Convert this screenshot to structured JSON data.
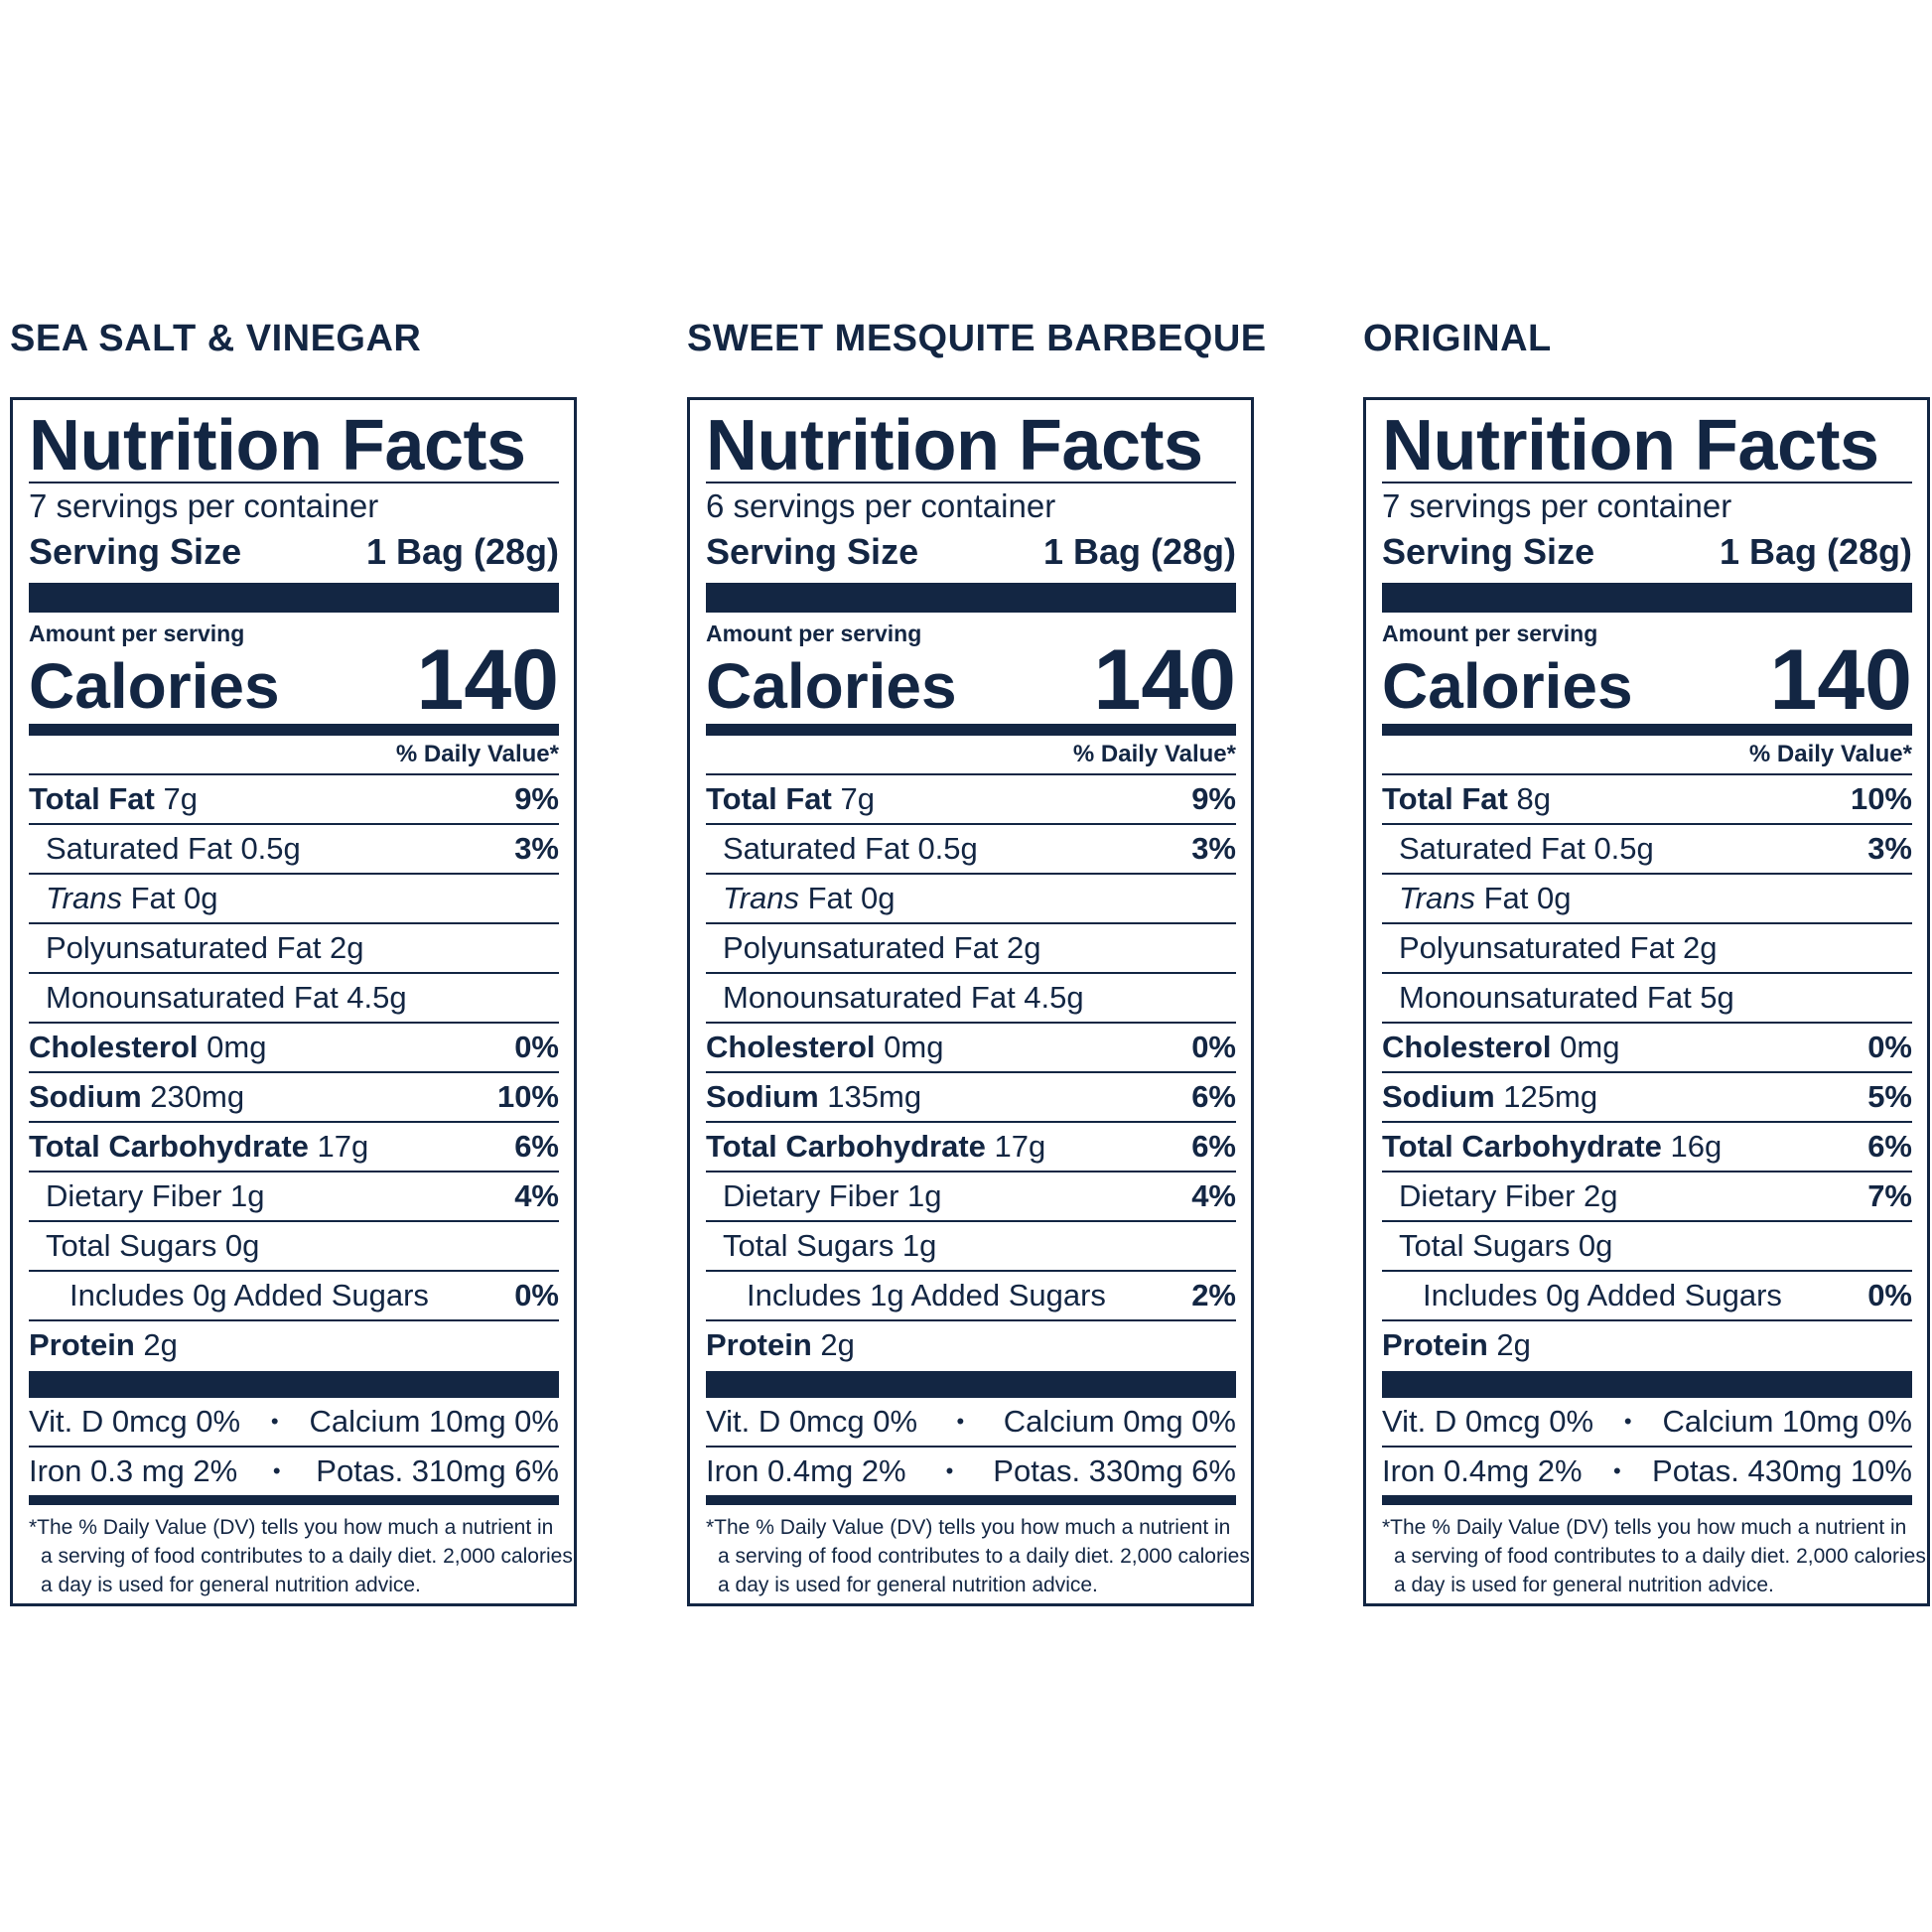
{
  "labels": [
    {
      "flavor": "SEA SALT & VINEGAR",
      "title": "Nutrition Facts",
      "servings": "7 servings per container",
      "serving_size_label": "Serving Size",
      "serving_size_value": "1 Bag (28g)",
      "amount_per_serving": "Amount per serving",
      "calories_label": "Calories",
      "calories_value": "140",
      "dv_header": "% Daily Value*",
      "total_fat": {
        "label": "Total Fat",
        "amount": "7g",
        "dv": "9%"
      },
      "saturated_fat": {
        "label": "Saturated Fat 0.5g",
        "dv": "3%"
      },
      "trans_fat": {
        "label_italic": "Trans",
        "label_rest": " Fat 0g"
      },
      "poly_fat": {
        "label": "Polyunsaturated Fat 2g"
      },
      "mono_fat": {
        "label": "Monounsaturated Fat 4.5g"
      },
      "cholesterol": {
        "label": "Cholesterol",
        "amount": "0mg",
        "dv": "0%"
      },
      "sodium": {
        "label": "Sodium",
        "amount": "230mg",
        "dv": "10%"
      },
      "total_carb": {
        "label": "Total Carbohydrate",
        "amount": "17g",
        "dv": "6%"
      },
      "fiber": {
        "label": "Dietary Fiber 1g",
        "dv": "4%"
      },
      "total_sugars": {
        "label": "Total Sugars 0g"
      },
      "added_sugars": {
        "label": "Includes 0g Added Sugars",
        "dv": "0%"
      },
      "protein": {
        "label": "Protein",
        "amount": "2g"
      },
      "vit_row": {
        "left": "Vit. D 0mcg 0%",
        "right": "Calcium 10mg 0%"
      },
      "iron_row": {
        "left": "Iron 0.3 mg  2%",
        "right": "Potas. 310mg 6%"
      },
      "footnote": {
        "line1": "*The % Daily Value (DV) tells you how much a nutrient in",
        "line2": "a serving of food contributes to a daily diet. 2,000 calories",
        "line3": "a day is used for general nutrition advice."
      }
    },
    {
      "flavor": "SWEET MESQUITE BARBEQUE",
      "title": "Nutrition Facts",
      "servings": "6 servings per container",
      "serving_size_label": "Serving Size",
      "serving_size_value": "1 Bag (28g)",
      "amount_per_serving": "Amount per serving",
      "calories_label": "Calories",
      "calories_value": "140",
      "dv_header": "% Daily Value*",
      "total_fat": {
        "label": "Total Fat",
        "amount": "7g",
        "dv": "9%"
      },
      "saturated_fat": {
        "label": "Saturated Fat 0.5g",
        "dv": "3%"
      },
      "trans_fat": {
        "label_italic": "Trans",
        "label_rest": " Fat 0g"
      },
      "poly_fat": {
        "label": "Polyunsaturated Fat 2g"
      },
      "mono_fat": {
        "label": "Monounsaturated Fat 4.5g"
      },
      "cholesterol": {
        "label": "Cholesterol",
        "amount": "0mg",
        "dv": "0%"
      },
      "sodium": {
        "label": "Sodium",
        "amount": "135mg",
        "dv": "6%"
      },
      "total_carb": {
        "label": "Total Carbohydrate",
        "amount": "17g",
        "dv": "6%"
      },
      "fiber": {
        "label": "Dietary Fiber 1g",
        "dv": "4%"
      },
      "total_sugars": {
        "label": "Total Sugars 1g"
      },
      "added_sugars": {
        "label": "Includes 1g Added Sugars",
        "dv": "2%"
      },
      "protein": {
        "label": "Protein",
        "amount": "2g"
      },
      "vit_row": {
        "left": "Vit. D 0mcg 0%",
        "right": "Calcium 0mg 0%"
      },
      "iron_row": {
        "left": "Iron 0.4mg  2%",
        "right": "Potas. 330mg 6%"
      },
      "footnote": {
        "line1": "*The % Daily Value (DV) tells you how much a nutrient in",
        "line2": "a serving of food contributes to a daily diet. 2,000 calories",
        "line3": "a day is used for general nutrition advice."
      }
    },
    {
      "flavor": "ORIGINAL",
      "title": "Nutrition Facts",
      "servings": "7 servings per container",
      "serving_size_label": "Serving Size",
      "serving_size_value": "1 Bag (28g)",
      "amount_per_serving": "Amount per serving",
      "calories_label": "Calories",
      "calories_value": "140",
      "dv_header": "% Daily Value*",
      "total_fat": {
        "label": "Total Fat",
        "amount": "8g",
        "dv": "10%"
      },
      "saturated_fat": {
        "label": "Saturated Fat 0.5g",
        "dv": "3%"
      },
      "trans_fat": {
        "label_italic": "Trans",
        "label_rest": " Fat 0g"
      },
      "poly_fat": {
        "label": "Polyunsaturated Fat 2g"
      },
      "mono_fat": {
        "label": "Monounsaturated Fat 5g"
      },
      "cholesterol": {
        "label": "Cholesterol",
        "amount": "0mg",
        "dv": "0%"
      },
      "sodium": {
        "label": "Sodium",
        "amount": "125mg",
        "dv": "5%"
      },
      "total_carb": {
        "label": "Total Carbohydrate",
        "amount": "16g",
        "dv": "6%"
      },
      "fiber": {
        "label": "Dietary Fiber 2g",
        "dv": "7%"
      },
      "total_sugars": {
        "label": "Total Sugars 0g"
      },
      "added_sugars": {
        "label": "Includes 0g Added Sugars",
        "dv": "0%"
      },
      "protein": {
        "label": "Protein",
        "amount": "2g"
      },
      "vit_row": {
        "left": "Vit. D 0mcg 0%",
        "right": "Calcium 10mg 0%"
      },
      "iron_row": {
        "left": "Iron 0.4mg  2%",
        "right": "Potas. 430mg 10%"
      },
      "footnote": {
        "line1": "*The % Daily Value (DV) tells you how much a nutrient in",
        "line2": "a serving of food contributes to a daily diet. 2,000 calories",
        "line3": "a day is used for general nutrition advice."
      }
    }
  ],
  "bullet": "•",
  "colors": {
    "ink": "#132643",
    "background": "#ffffff"
  }
}
